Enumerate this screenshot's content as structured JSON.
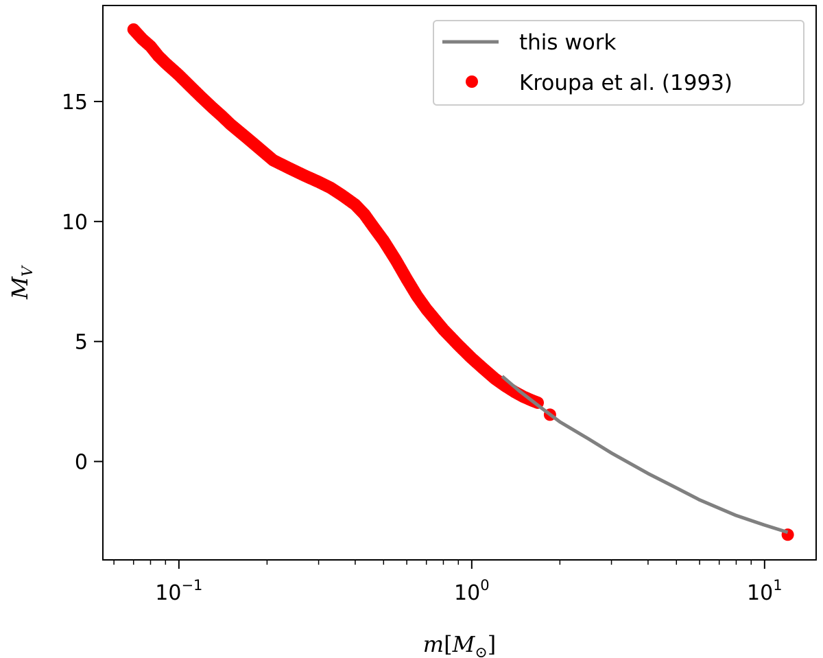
{
  "chart_data": {
    "type": "scatter",
    "x_scale": "log",
    "xlim": [
      0.055,
      15
    ],
    "ylim": [
      -4.1,
      19
    ],
    "xlabel": "m[M⊙]",
    "ylabel": "M_V",
    "x_ticks": [
      {
        "value": 0.1,
        "base": "10",
        "exp": "−1"
      },
      {
        "value": 1,
        "base": "10",
        "exp": "0"
      },
      {
        "value": 10,
        "base": "10",
        "exp": "1"
      }
    ],
    "y_ticks": [
      0,
      5,
      10,
      15
    ],
    "legend": {
      "location": "upper right"
    },
    "series": [
      {
        "name": "this work",
        "kind": "line",
        "color": "#808080",
        "x": [
          1.27,
          1.45,
          1.7,
          2.0,
          2.5,
          3.0,
          4.0,
          5.0,
          6.0,
          8.0,
          10.0,
          12.0
        ],
        "y": [
          3.55,
          2.95,
          2.3,
          1.65,
          0.95,
          0.35,
          -0.5,
          -1.1,
          -1.6,
          -2.25,
          -2.65,
          -2.95
        ]
      },
      {
        "name": "Kroupa et al. (1993)",
        "kind": "scatter",
        "color": "#ff0000",
        "x": [
          0.07,
          0.075,
          0.08,
          0.085,
          0.09,
          0.1,
          0.11,
          0.12,
          0.13,
          0.14,
          0.15,
          0.17,
          0.19,
          0.21,
          0.24,
          0.27,
          0.3,
          0.33,
          0.36,
          0.4,
          0.43,
          0.46,
          0.5,
          0.55,
          0.6,
          0.65,
          0.7,
          0.8,
          0.9,
          1.0,
          1.1,
          1.2,
          1.3,
          1.4,
          1.5,
          1.6,
          1.68,
          1.85,
          12.0
        ],
        "y": [
          18.0,
          17.6,
          17.3,
          16.9,
          16.6,
          16.1,
          15.6,
          15.15,
          14.75,
          14.4,
          14.05,
          13.5,
          13.0,
          12.55,
          12.2,
          11.9,
          11.65,
          11.4,
          11.1,
          10.7,
          10.3,
          9.8,
          9.2,
          8.4,
          7.6,
          6.9,
          6.35,
          5.5,
          4.85,
          4.3,
          3.85,
          3.45,
          3.15,
          2.9,
          2.7,
          2.55,
          2.45,
          1.95,
          -3.05
        ]
      }
    ]
  }
}
